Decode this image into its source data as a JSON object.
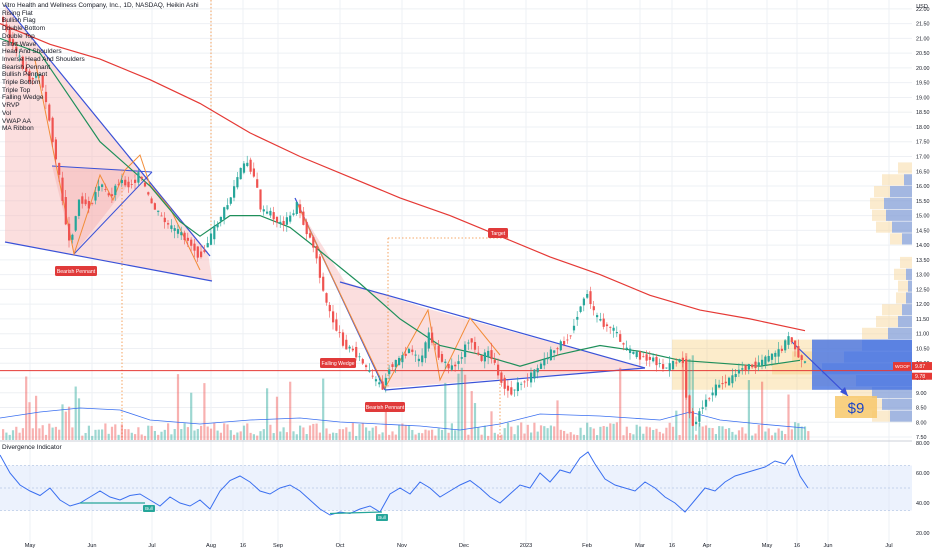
{
  "header": {
    "title": "Vitro Health and Wellness Company, Inc., 1D, NASDAQ, Heikin Ashi",
    "currency": "USD"
  },
  "indicators": [
    "Rising Flat",
    "Bullish Flag",
    "Double Bottom",
    "Double Top",
    "Elliott Wave",
    "Head And Shoulders",
    "Inverse Head And Shoulders",
    "Bearish Pennant",
    "Bullish Pennant",
    "Triple Bottom",
    "Triple Top",
    "Falling Wedge",
    "VRVP",
    "Vol",
    "VWAP AA",
    "MA Ribbon"
  ],
  "annotations": {
    "bearish_pennant_1": "Bearish Pennant",
    "falling_wedge": "Falling Wedge",
    "bearish_pennant_2": "Bearish Pennant",
    "target": "Target",
    "price_target": "$9",
    "div_bull_1": "Bull",
    "div_bull_2": "Bull"
  },
  "price_tags": {
    "ticker": "WOOF",
    "last": "9.87",
    "second": "9.78"
  },
  "oscillator": {
    "title": "Divergence Indicator",
    "ticks": [
      "80.00",
      "60.00",
      "40.00",
      "20.00"
    ]
  },
  "chart_data": [
    {
      "type": "candlestick",
      "title": "Vitro Health and Wellness Company, Inc., 1D, NASDAQ, Heikin Ashi",
      "x_tick_labels": [
        "May",
        "Jun",
        "Jul",
        "Aug",
        "16",
        "Sep",
        "Oct",
        "Nov",
        "Dec",
        "2023",
        "Feb",
        "Mar",
        "16",
        "Apr",
        "May",
        "16",
        "Jun",
        "Jul"
      ],
      "y_tick_labels": [
        "22.00",
        "21.50",
        "21.00",
        "20.50",
        "20.00",
        "19.50",
        "19.00",
        "18.50",
        "18.00",
        "17.50",
        "17.00",
        "16.50",
        "16.00",
        "15.50",
        "15.00",
        "14.50",
        "14.00",
        "13.50",
        "13.00",
        "12.50",
        "12.00",
        "11.50",
        "11.00",
        "10.50",
        "10.00",
        "9.50",
        "9.00",
        "8.50",
        "8.00",
        "7.50"
      ],
      "ylim": [
        7.4,
        22.3
      ],
      "grid": true,
      "price_path": [
        [
          0,
          21.8
        ],
        [
          10,
          21.0
        ],
        [
          20,
          20.3
        ],
        [
          30,
          19.6
        ],
        [
          40,
          19.8
        ],
        [
          50,
          18.2
        ],
        [
          60,
          16.2
        ],
        [
          70,
          14.0
        ],
        [
          80,
          15.6
        ],
        [
          90,
          15.3
        ],
        [
          100,
          16.1
        ],
        [
          110,
          15.6
        ],
        [
          120,
          16.2
        ],
        [
          130,
          16.0
        ],
        [
          140,
          16.4
        ],
        [
          150,
          15.5
        ],
        [
          160,
          15.0
        ],
        [
          170,
          14.6
        ],
        [
          180,
          14.4
        ],
        [
          190,
          14.1
        ],
        [
          200,
          13.6
        ],
        [
          210,
          14.2
        ],
        [
          220,
          14.9
        ],
        [
          230,
          15.5
        ],
        [
          240,
          16.5
        ],
        [
          248,
          16.8
        ],
        [
          255,
          16.3
        ],
        [
          262,
          15.1
        ],
        [
          270,
          15.1
        ],
        [
          280,
          14.7
        ],
        [
          290,
          14.9
        ],
        [
          298,
          15.4
        ],
        [
          305,
          14.6
        ],
        [
          315,
          13.9
        ],
        [
          325,
          12.2
        ],
        [
          335,
          11.3
        ],
        [
          345,
          10.6
        ],
        [
          355,
          10.4
        ],
        [
          365,
          9.9
        ],
        [
          375,
          9.4
        ],
        [
          383,
          9.2
        ],
        [
          390,
          9.9
        ],
        [
          400,
          10.1
        ],
        [
          410,
          10.5
        ],
        [
          420,
          10.0
        ],
        [
          430,
          11.0
        ],
        [
          440,
          10.2
        ],
        [
          450,
          9.8
        ],
        [
          460,
          10.1
        ],
        [
          470,
          10.9
        ],
        [
          480,
          10.1
        ],
        [
          490,
          10.4
        ],
        [
          500,
          9.5
        ],
        [
          510,
          9.0
        ],
        [
          520,
          9.3
        ],
        [
          530,
          9.5
        ],
        [
          540,
          9.9
        ],
        [
          550,
          10.3
        ],
        [
          560,
          10.6
        ],
        [
          570,
          10.9
        ],
        [
          580,
          11.9
        ],
        [
          588,
          12.4
        ],
        [
          595,
          11.6
        ],
        [
          605,
          11.3
        ],
        [
          615,
          11.1
        ],
        [
          625,
          10.5
        ],
        [
          635,
          10.3
        ],
        [
          645,
          10.2
        ],
        [
          655,
          10.1
        ],
        [
          665,
          9.8
        ],
        [
          675,
          10.0
        ],
        [
          683,
          10.2
        ],
        [
          688,
          8.5
        ],
        [
          695,
          7.8
        ],
        [
          700,
          8.4
        ],
        [
          710,
          8.9
        ],
        [
          720,
          9.3
        ],
        [
          730,
          9.4
        ],
        [
          740,
          9.8
        ],
        [
          750,
          9.9
        ],
        [
          760,
          10.0
        ],
        [
          770,
          10.2
        ],
        [
          780,
          10.4
        ],
        [
          790,
          10.9
        ],
        [
          800,
          10.2
        ],
        [
          808,
          9.87
        ]
      ],
      "ma_green": [
        [
          0,
          21.0
        ],
        [
          40,
          20.5
        ],
        [
          70,
          19.0
        ],
        [
          100,
          17.5
        ],
        [
          150,
          16.0
        ],
        [
          180,
          14.8
        ],
        [
          200,
          14.3
        ],
        [
          230,
          15.0
        ],
        [
          260,
          15.0
        ],
        [
          290,
          14.6
        ],
        [
          320,
          13.8
        ],
        [
          360,
          12.7
        ],
        [
          400,
          11.5
        ],
        [
          440,
          10.6
        ],
        [
          480,
          10.3
        ],
        [
          520,
          9.9
        ],
        [
          560,
          10.3
        ],
        [
          600,
          10.6
        ],
        [
          640,
          10.4
        ],
        [
          680,
          10.1
        ],
        [
          720,
          10.0
        ],
        [
          760,
          9.9
        ],
        [
          800,
          10.1
        ]
      ],
      "ma_red": [
        [
          0,
          21.5
        ],
        [
          50,
          20.8
        ],
        [
          100,
          20.3
        ],
        [
          150,
          19.6
        ],
        [
          200,
          18.8
        ],
        [
          250,
          17.8
        ],
        [
          300,
          17.0
        ],
        [
          350,
          16.3
        ],
        [
          400,
          15.6
        ],
        [
          450,
          15.0
        ],
        [
          500,
          14.3
        ],
        [
          550,
          13.6
        ],
        [
          600,
          13.0
        ],
        [
          650,
          12.3
        ],
        [
          700,
          11.8
        ],
        [
          750,
          11.5
        ],
        [
          805,
          11.1
        ]
      ],
      "horizontal_line": 9.75,
      "series": [
        {
          "name": "Vol",
          "values": []
        }
      ]
    },
    {
      "type": "line",
      "title": "Divergence Indicator",
      "ylim": [
        10,
        80
      ],
      "y_tick_labels": [
        "80.00",
        "60.00",
        "40.00",
        "20.00"
      ],
      "values": [
        [
          0,
          72
        ],
        [
          10,
          60
        ],
        [
          20,
          52
        ],
        [
          30,
          48
        ],
        [
          40,
          45
        ],
        [
          50,
          50
        ],
        [
          60,
          42
        ],
        [
          70,
          38
        ],
        [
          80,
          40
        ],
        [
          90,
          44
        ],
        [
          100,
          48
        ],
        [
          110,
          44
        ],
        [
          120,
          42
        ],
        [
          130,
          45
        ],
        [
          140,
          46
        ],
        [
          150,
          42
        ],
        [
          160,
          38
        ],
        [
          170,
          44
        ],
        [
          180,
          40
        ],
        [
          190,
          38
        ],
        [
          200,
          42
        ],
        [
          210,
          36
        ],
        [
          220,
          48
        ],
        [
          230,
          55
        ],
        [
          240,
          58
        ],
        [
          250,
          54
        ],
        [
          260,
          48
        ],
        [
          270,
          46
        ],
        [
          280,
          50
        ],
        [
          290,
          52
        ],
        [
          300,
          48
        ],
        [
          310,
          42
        ],
        [
          320,
          36
        ],
        [
          330,
          32
        ],
        [
          340,
          34
        ],
        [
          350,
          33
        ],
        [
          360,
          36
        ],
        [
          370,
          38
        ],
        [
          380,
          34
        ],
        [
          390,
          46
        ],
        [
          400,
          50
        ],
        [
          410,
          46
        ],
        [
          420,
          54
        ],
        [
          430,
          50
        ],
        [
          440,
          44
        ],
        [
          450,
          48
        ],
        [
          460,
          52
        ],
        [
          470,
          55
        ],
        [
          480,
          50
        ],
        [
          490,
          44
        ],
        [
          500,
          40
        ],
        [
          510,
          46
        ],
        [
          520,
          52
        ],
        [
          530,
          50
        ],
        [
          540,
          60
        ],
        [
          550,
          54
        ],
        [
          560,
          62
        ],
        [
          570,
          60
        ],
        [
          580,
          70
        ],
        [
          588,
          74
        ],
        [
          595,
          66
        ],
        [
          605,
          56
        ],
        [
          615,
          52
        ],
        [
          625,
          50
        ],
        [
          635,
          48
        ],
        [
          645,
          54
        ],
        [
          655,
          50
        ],
        [
          665,
          44
        ],
        [
          675,
          40
        ],
        [
          685,
          34
        ],
        [
          695,
          42
        ],
        [
          705,
          50
        ],
        [
          715,
          48
        ],
        [
          725,
          54
        ],
        [
          735,
          58
        ],
        [
          745,
          60
        ],
        [
          755,
          62
        ],
        [
          765,
          64
        ],
        [
          775,
          68
        ],
        [
          785,
          66
        ],
        [
          792,
          72
        ],
        [
          800,
          58
        ],
        [
          808,
          50
        ]
      ]
    }
  ]
}
